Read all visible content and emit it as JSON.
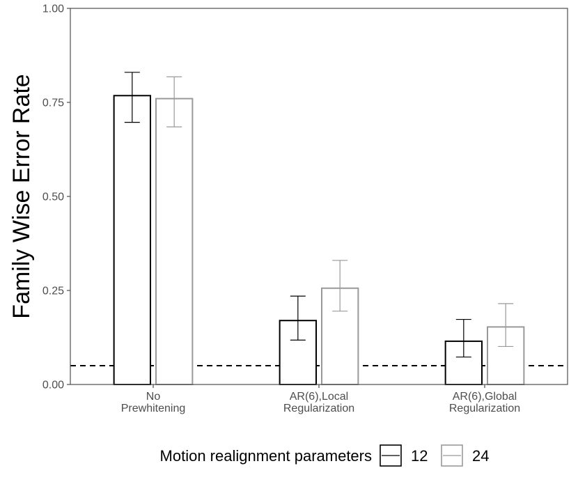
{
  "chart_data": {
    "type": "bar",
    "title": "",
    "xlabel": "",
    "ylabel": "Family Wise Error Rate",
    "ylim": [
      0,
      1
    ],
    "y_ticks": [
      "0.00",
      "0.25",
      "0.50",
      "0.75",
      "1.00"
    ],
    "y_tick_values": [
      0,
      0.25,
      0.5,
      0.75,
      1.0
    ],
    "categories": [
      [
        "No",
        "Prewhitening"
      ],
      [
        "AR(6),Local",
        "Regularization"
      ],
      [
        "AR(6),Global",
        "Regularization"
      ]
    ],
    "series": [
      {
        "name": "12",
        "color": "#000000",
        "values": [
          0.768,
          0.17,
          0.115
        ],
        "err_low": [
          0.697,
          0.118,
          0.073
        ],
        "err_high": [
          0.83,
          0.235,
          0.173
        ]
      },
      {
        "name": "24",
        "color": "#999999",
        "values": [
          0.76,
          0.256,
          0.153
        ],
        "err_low": [
          0.685,
          0.195,
          0.101
        ],
        "err_high": [
          0.818,
          0.33,
          0.215
        ]
      }
    ],
    "reference_line": {
      "value": 0.05,
      "style": "dashed",
      "color": "#000000"
    },
    "legend": {
      "title": "Motion realignment parameters",
      "position": "bottom"
    },
    "grid": false
  }
}
